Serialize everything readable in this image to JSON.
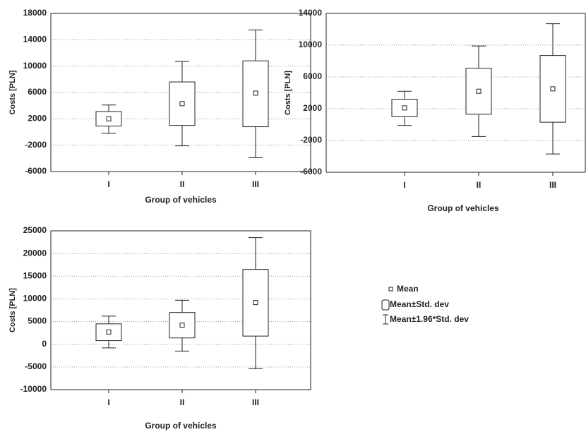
{
  "chart_data": [
    {
      "type": "box",
      "ylabel": "Costs [PLN]",
      "xlabel": "Group of vehicles",
      "categories": [
        "I",
        "II",
        "III"
      ],
      "mean": [
        2000,
        4300,
        5900
      ],
      "sd_low": [
        900,
        1000,
        800
      ],
      "sd_high": [
        3100,
        7600,
        10800
      ],
      "ci_low": [
        -200,
        -2100,
        -3900
      ],
      "ci_high": [
        4100,
        10700,
        15500
      ],
      "ylim": [
        -6000,
        18000
      ],
      "yticks": [
        -6000,
        -2000,
        2000,
        6000,
        10000,
        14000,
        18000
      ],
      "grid": true
    },
    {
      "type": "box",
      "ylabel": "Costs [PLN]",
      "xlabel": "Group of vehicles",
      "categories": [
        "I",
        "II",
        "III"
      ],
      "mean": [
        2100,
        4200,
        4500
      ],
      "sd_low": [
        1000,
        1300,
        300
      ],
      "sd_high": [
        3200,
        7100,
        8700
      ],
      "ci_low": [
        -100,
        -1500,
        -3700
      ],
      "ci_high": [
        4200,
        9900,
        12700
      ],
      "ylim": [
        -6000,
        14000
      ],
      "yticks": [
        -6000,
        -2000,
        2000,
        6000,
        10000,
        14000
      ],
      "grid": true
    },
    {
      "type": "box",
      "ylabel": "Costs [PLN]",
      "xlabel": "Group of vehicles",
      "categories": [
        "I",
        "II",
        "III"
      ],
      "mean": [
        2700,
        4200,
        9200
      ],
      "sd_low": [
        800,
        1400,
        1800
      ],
      "sd_high": [
        4500,
        7000,
        16500
      ],
      "ci_low": [
        -800,
        -1500,
        -5400
      ],
      "ci_high": [
        6200,
        9700,
        23500
      ],
      "ylim": [
        -10000,
        25000
      ],
      "yticks": [
        -10000,
        -5000,
        0,
        5000,
        10000,
        15000,
        20000,
        25000
      ],
      "grid": true
    }
  ],
  "legend": [
    "Mean",
    "Mean±Std. dev",
    "Mean±1.96*Std. dev"
  ]
}
